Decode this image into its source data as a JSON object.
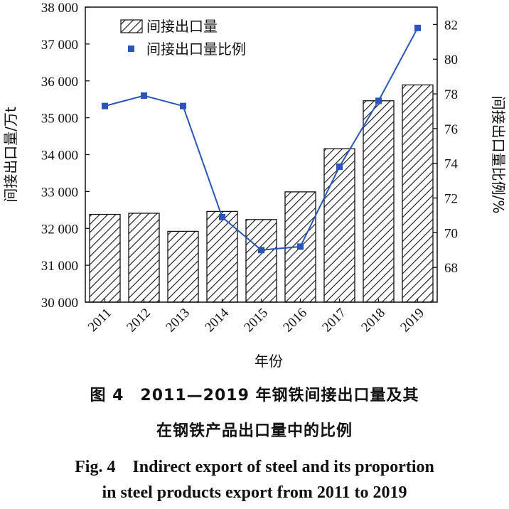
{
  "chart_data": {
    "type": "bar",
    "categories": [
      "2011",
      "2012",
      "2013",
      "2014",
      "2015",
      "2016",
      "2017",
      "2018",
      "2019"
    ],
    "series": [
      {
        "name": "间接出口量",
        "type": "bar",
        "axis": "left",
        "values": [
          32380,
          32410,
          31920,
          32460,
          32240,
          32990,
          34160,
          35460,
          35890
        ]
      },
      {
        "name": "间接出口量比例",
        "type": "line",
        "axis": "right",
        "values": [
          77.3,
          77.9,
          77.3,
          70.9,
          69.0,
          69.2,
          73.8,
          77.6,
          81.8
        ]
      }
    ],
    "xlabel": "年份",
    "ylabel": "间接出口量/万t",
    "y2label": "间接出口量比例/%",
    "ylim": [
      30000,
      38000
    ],
    "yticks": [
      "30 000",
      "31 000",
      "32 000",
      "33 000",
      "34 000",
      "35 000",
      "36 000",
      "37 000",
      "38 000"
    ],
    "y2lim": [
      66,
      83
    ],
    "y2ticks": [
      "68",
      "70",
      "72",
      "74",
      "76",
      "78",
      "80",
      "82"
    ],
    "legend": "top-left",
    "line_color": "#2a56b8",
    "bar_pattern": "diagonal-hatch"
  },
  "caption": {
    "cn_line1": "图 4　2011—2019 年钢铁间接出口量及其",
    "cn_line2": "在钢铁产品出口量中的比例",
    "en_line1": "Fig. 4　Indirect export of steel and its proportion",
    "en_line2": "in steel products export from 2011 to 2019"
  }
}
